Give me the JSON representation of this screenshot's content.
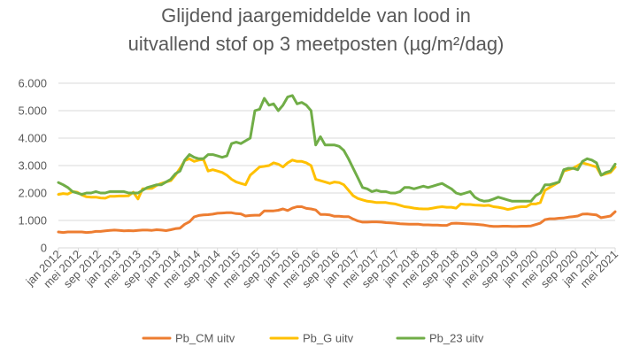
{
  "chart_data": {
    "type": "line",
    "title_line1": "Glijdend jaargemiddelde van lood in",
    "title_line2": "uitvallend stof op 3 meetposten (µg/m²/dag)",
    "xlabel": "",
    "ylabel": "",
    "ylim": [
      0,
      6000
    ],
    "y_ticks": [
      "0",
      "1.000",
      "2.000",
      "3.000",
      "4.000",
      "5.000",
      "6.000"
    ],
    "x_tick_labels": [
      "jan 2012",
      "mei 2012",
      "sep 2012",
      "jan 2013",
      "mei 2013",
      "sep 2013",
      "jan 2014",
      "mei 2014",
      "sep 2014",
      "jan 2015",
      "mei 2015",
      "sep 2015",
      "jan 2016",
      "mei 2016",
      "sep 2016",
      "jan 2017",
      "mei 2017",
      "sep 2017",
      "jan 2018",
      "mei 2018",
      "sep 2018",
      "jan 2019",
      "mei 2019",
      "sep 2019",
      "jan 2020",
      "mei 2020",
      "sep 2020",
      "jan 2021",
      "mei 2021"
    ],
    "grid": true,
    "legend_position": "bottom",
    "series": [
      {
        "name": "Pb_CM uitv",
        "color": "#ED7D31",
        "values": [
          580,
          560,
          580,
          580,
          580,
          580,
          560,
          570,
          600,
          600,
          620,
          640,
          650,
          640,
          620,
          630,
          620,
          640,
          650,
          650,
          640,
          660,
          650,
          630,
          660,
          700,
          720,
          860,
          950,
          1130,
          1180,
          1200,
          1210,
          1230,
          1260,
          1270,
          1280,
          1280,
          1250,
          1240,
          1160,
          1180,
          1190,
          1190,
          1350,
          1350,
          1350,
          1370,
          1420,
          1360,
          1450,
          1500,
          1500,
          1440,
          1420,
          1380,
          1220,
          1220,
          1200,
          1150,
          1150,
          1140,
          1140,
          1050,
          980,
          940,
          940,
          950,
          950,
          940,
          920,
          910,
          900,
          880,
          870,
          860,
          860,
          860,
          840,
          840,
          830,
          830,
          820,
          820,
          890,
          900,
          890,
          880,
          870,
          860,
          850,
          830,
          800,
          780,
          780,
          790,
          790,
          780,
          780,
          790,
          790,
          800,
          850,
          900,
          1030,
          1060,
          1060,
          1080,
          1090,
          1120,
          1140,
          1160,
          1230,
          1240,
          1220,
          1200,
          1100,
          1130,
          1160,
          1320
        ]
      },
      {
        "name": "Pb_G uitv",
        "color": "#FFC000",
        "values": [
          1950,
          1980,
          1960,
          2050,
          2030,
          1930,
          1860,
          1850,
          1850,
          1820,
          1810,
          1880,
          1880,
          1890,
          1890,
          1900,
          2030,
          1780,
          2150,
          2160,
          2170,
          2280,
          2350,
          2400,
          2450,
          2650,
          2900,
          3180,
          3250,
          3150,
          3200,
          3220,
          2800,
          2850,
          2800,
          2750,
          2650,
          2500,
          2400,
          2350,
          2300,
          2650,
          2800,
          2950,
          2970,
          3000,
          3100,
          3050,
          2950,
          3100,
          3200,
          3150,
          3150,
          3100,
          3000,
          2500,
          2450,
          2400,
          2350,
          2400,
          2380,
          2300,
          2100,
          1900,
          1800,
          1750,
          1700,
          1680,
          1650,
          1650,
          1650,
          1620,
          1600,
          1550,
          1500,
          1480,
          1450,
          1430,
          1420,
          1420,
          1450,
          1480,
          1500,
          1480,
          1480,
          1450,
          1600,
          1580,
          1580,
          1560,
          1550,
          1540,
          1550,
          1500,
          1480,
          1450,
          1400,
          1430,
          1480,
          1500,
          1500,
          1600,
          1600,
          1650,
          2100,
          2200,
          2300,
          2400,
          2800,
          2850,
          2900,
          3000,
          3100,
          3050,
          3000,
          2950,
          2650,
          2700,
          2750,
          2950
        ]
      },
      {
        "name": "Pb_23 uitv",
        "color": "#70AD47",
        "values": [
          2380,
          2300,
          2200,
          2050,
          2000,
          1950,
          2000,
          2000,
          2050,
          2000,
          2000,
          2050,
          2050,
          2050,
          2050,
          2000,
          2000,
          2000,
          2100,
          2200,
          2250,
          2300,
          2300,
          2400,
          2500,
          2700,
          2800,
          3200,
          3400,
          3300,
          3250,
          3250,
          3400,
          3400,
          3350,
          3300,
          3350,
          3800,
          3850,
          3800,
          3900,
          4000,
          5000,
          5050,
          5450,
          5200,
          5250,
          5000,
          5200,
          5500,
          5550,
          5250,
          5300,
          5200,
          5000,
          3750,
          4050,
          3750,
          3750,
          3750,
          3700,
          3550,
          3250,
          2900,
          2550,
          2200,
          2150,
          2050,
          2100,
          2050,
          2050,
          2000,
          2000,
          2050,
          2200,
          2200,
          2150,
          2200,
          2250,
          2200,
          2250,
          2300,
          2350,
          2250,
          2150,
          2000,
          1950,
          2000,
          2050,
          1850,
          1750,
          1700,
          1720,
          1780,
          1850,
          1800,
          1750,
          1700,
          1700,
          1700,
          1700,
          1700,
          1900,
          2000,
          2300,
          2300,
          2350,
          2400,
          2850,
          2900,
          2900,
          2850,
          3150,
          3250,
          3200,
          3100,
          2650,
          2750,
          2800,
          3050
        ]
      }
    ]
  }
}
